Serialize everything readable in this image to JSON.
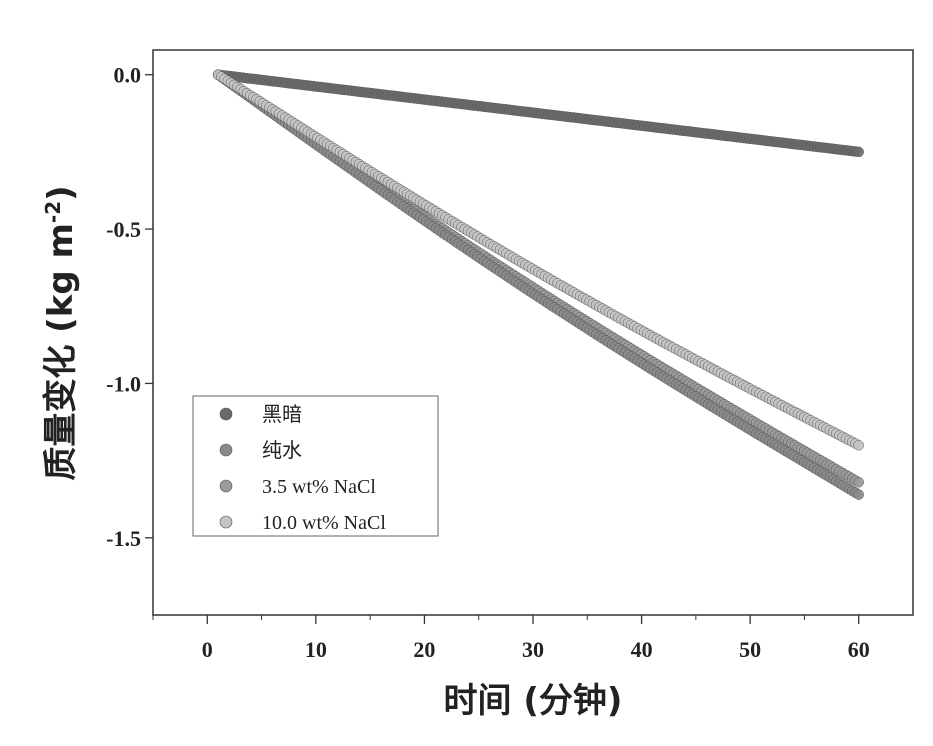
{
  "chart_data": {
    "type": "scatter",
    "xlabel": "时间 (分钟)",
    "ylabel": "质量变化 (kg m",
    "ylabel_sup": "-2",
    "ylabel_close": ")",
    "xlim": [
      -5,
      65
    ],
    "ylim": [
      -1.75,
      0.08
    ],
    "xticks": [
      0,
      10,
      20,
      30,
      40,
      50,
      60
    ],
    "yticks": [
      0.0,
      -0.5,
      -1.0,
      -1.5
    ],
    "xtick_labels": [
      "0",
      "10",
      "20",
      "30",
      "40",
      "50",
      "60"
    ],
    "ytick_labels": [
      "0.0",
      "-0.5",
      "-1.0",
      "-1.5"
    ],
    "grid": false,
    "legend_position": "bottom-left",
    "series": [
      {
        "name": "黑暗",
        "color": "#6a6a6a",
        "x_start": 1,
        "x_end": 60,
        "y_start": 0.0,
        "y_end": -0.25
      },
      {
        "name": "纯水",
        "color": "#8a8a8a",
        "x_start": 1,
        "x_end": 60,
        "y_start": 0.0,
        "y_end": -1.36
      },
      {
        "name": "3.5 wt% NaCl",
        "color": "#9a9a9a",
        "x_start": 1,
        "x_end": 60,
        "y_start": 0.0,
        "y_end": -1.32
      },
      {
        "name": "10.0 wt% NaCl",
        "color": "#c4c4c4",
        "x_start": 1,
        "x_end": 60,
        "y_start": 0.0,
        "y_end": -1.2
      }
    ]
  }
}
